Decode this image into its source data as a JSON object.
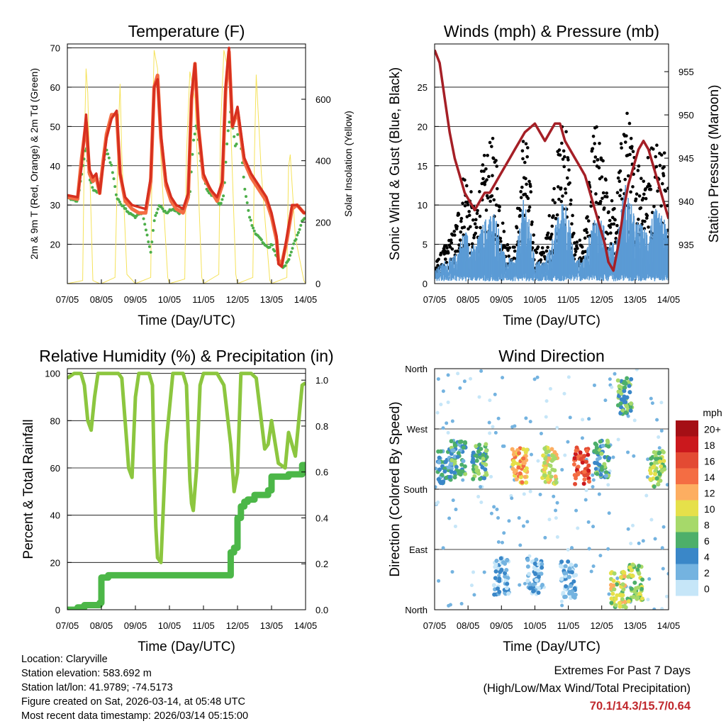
{
  "colors": {
    "t2m": "#d7301f",
    "t9m": "#f46d43",
    "td": "#4daf4a",
    "solar": "#f5e25a",
    "gust": "#000000",
    "wind": "#5b9bd5",
    "pressure": "#a51f26",
    "rh": "#8cc63f",
    "precip": "#4cb748",
    "extremes": "#c0282d"
  },
  "x_ticks": [
    "07/05",
    "08/05",
    "09/05",
    "10/05",
    "11/05",
    "12/05",
    "13/05",
    "14/05"
  ],
  "x_label": "Time (Day/UTC)",
  "info": {
    "location": "Location: Claryville",
    "elevation": "Station elevation: 583.692 m",
    "latlon": "Station lat/lon: 41.9789; -74.5173",
    "created": "Figure created on Sat, 2026-03-14, at 05:48 UTC",
    "recent": "Most recent data timestamp: 2026/03/14 05:15:00"
  },
  "extremes": {
    "title": "Extremes For Past 7 Days",
    "subtitle": "(High/Low/Max Wind/Total Precipitation)",
    "values": "70.1/14.3/15.7/0.64"
  },
  "chart_data": [
    {
      "id": "temperature",
      "type": "line",
      "title": "Temperature (F)",
      "xlabel": "Time (Day/UTC)",
      "ylabel": "2m & 9m T (Red, Orange) & 2m Td (Green)",
      "y2label": "Solar Insolation (Yellow)",
      "xlim": [
        0,
        7
      ],
      "ylim": [
        10,
        71
      ],
      "y2lim": [
        0,
        780
      ],
      "y_ticks": [
        20,
        30,
        40,
        50,
        60,
        70
      ],
      "y2_ticks": [
        0,
        200,
        400,
        600
      ],
      "y_ticks_labels": [
        "20",
        "30",
        "40",
        "50",
        "60",
        "70"
      ],
      "y2_ticks_labels": [
        "0",
        "200",
        "400",
        "600"
      ],
      "grid": true,
      "series": [
        {
          "name": "2m T",
          "color": "#d7301f",
          "x": [
            0,
            0.3,
            0.42,
            0.55,
            0.65,
            0.75,
            0.85,
            0.95,
            1.05,
            1.15,
            1.3,
            1.45,
            1.55,
            1.7,
            1.9,
            2.1,
            2.3,
            2.45,
            2.55,
            2.65,
            2.75,
            2.9,
            3.05,
            3.2,
            3.4,
            3.55,
            3.65,
            3.75,
            3.85,
            4.0,
            4.2,
            4.4,
            4.55,
            4.65,
            4.75,
            4.85,
            5.0,
            5.2,
            5.4,
            5.55,
            5.7,
            5.85,
            6.0,
            6.15,
            6.2,
            6.3,
            6.45,
            6.6,
            6.75,
            6.85,
            6.95,
            7.0
          ],
          "y": [
            32.5,
            32,
            40,
            53,
            39,
            37,
            38,
            33,
            40,
            47,
            52,
            54,
            38,
            32,
            30,
            29.5,
            29,
            37,
            60,
            62,
            48,
            36,
            32,
            30,
            29,
            33,
            58,
            66,
            50,
            38,
            34,
            32,
            36,
            60,
            70,
            50,
            55,
            42,
            38,
            36,
            34,
            32,
            28,
            22,
            15,
            14.3,
            22,
            30,
            30,
            29,
            28,
            28
          ]
        },
        {
          "name": "9m T",
          "color": "#f46d43",
          "x": [
            0,
            0.3,
            0.42,
            0.55,
            0.65,
            0.75,
            0.85,
            0.95,
            1.05,
            1.15,
            1.3,
            1.45,
            1.55,
            1.7,
            1.9,
            2.1,
            2.3,
            2.45,
            2.55,
            2.65,
            2.75,
            2.9,
            3.05,
            3.2,
            3.4,
            3.55,
            3.65,
            3.75,
            3.85,
            4.0,
            4.2,
            4.4,
            4.55,
            4.65,
            4.75,
            4.85,
            5.0,
            5.2,
            5.4,
            5.55,
            5.7,
            5.85,
            6.0,
            6.15,
            6.2,
            6.3,
            6.45,
            6.6,
            6.75,
            6.85,
            6.95,
            7.0
          ],
          "y": [
            32,
            31.5,
            42,
            51,
            38,
            36,
            37,
            33,
            41,
            48,
            53,
            53,
            38,
            31,
            29,
            28,
            28,
            36,
            60,
            63,
            47,
            35,
            31,
            29,
            28,
            32,
            57,
            66,
            50,
            37,
            34,
            31,
            35,
            59,
            69,
            50,
            54,
            41,
            37,
            35,
            33,
            31,
            27,
            21,
            16,
            15,
            21,
            29,
            30,
            29,
            28,
            28
          ]
        },
        {
          "name": "2m Td",
          "color": "#4daf4a",
          "x": [
            0,
            0.3,
            0.42,
            0.55,
            0.65,
            0.75,
            0.9,
            1.05,
            1.15,
            1.3,
            1.45,
            1.6,
            1.8,
            2.0,
            2.2,
            2.35,
            2.45,
            2.55,
            2.7,
            2.9,
            3.1,
            3.3,
            3.45,
            3.6,
            3.7,
            3.8,
            3.9,
            4.1,
            4.3,
            4.5,
            4.6,
            4.7,
            4.8,
            4.95,
            5.05,
            5.2,
            5.35,
            5.5,
            5.7,
            5.9,
            6.0,
            6.1,
            6.2,
            6.35,
            6.5,
            6.65,
            6.8,
            6.9,
            7.0
          ],
          "y": [
            32,
            31,
            38,
            45,
            37,
            34,
            33,
            40,
            44,
            40,
            32,
            30,
            28,
            27,
            28,
            22,
            18,
            26,
            30,
            28,
            29,
            28,
            30,
            33,
            46,
            51,
            42,
            34,
            32,
            30,
            33,
            47,
            54,
            44,
            51,
            35,
            27,
            23,
            21,
            19,
            20,
            18,
            16,
            14,
            16,
            20,
            23,
            26,
            27
          ]
        },
        {
          "name": "Solar Insolation",
          "color": "#f5e25a",
          "axis": "y2",
          "x": [
            0,
            0.45,
            0.5,
            0.55,
            0.6,
            0.65,
            0.75,
            0.95,
            1.0,
            1.4,
            1.5,
            1.55,
            1.6,
            1.75,
            2.0,
            2.45,
            2.5,
            2.55,
            2.65,
            2.75,
            2.95,
            3.0,
            3.45,
            3.5,
            3.6,
            3.75,
            3.95,
            4.0,
            4.45,
            4.5,
            4.6,
            4.75,
            4.95,
            5.0,
            5.45,
            5.5,
            5.55,
            5.7,
            5.95,
            6.0,
            6.45,
            6.5,
            6.55,
            6.7,
            6.95,
            7.0
          ],
          "y": [
            0,
            10,
            450,
            700,
            620,
            400,
            10,
            0,
            0,
            20,
            500,
            650,
            420,
            30,
            0,
            20,
            520,
            760,
            700,
            400,
            20,
            0,
            15,
            420,
            690,
            600,
            20,
            0,
            30,
            500,
            760,
            680,
            30,
            0,
            20,
            430,
            680,
            360,
            10,
            0,
            20,
            380,
            420,
            150,
            10,
            0
          ]
        }
      ]
    },
    {
      "id": "winds",
      "type": "scatter",
      "title": "Winds (mph) & Pressure (mb)",
      "xlabel": "Time (Day/UTC)",
      "ylabel": "Sonic Wind & Gust (Blue, Black)",
      "y2label": "Station Pressure (Maroon)",
      "xlim": [
        0,
        7
      ],
      "ylim": [
        0,
        30.5
      ],
      "y2lim": [
        930.5,
        958.2
      ],
      "y_ticks": [
        0,
        5,
        10,
        15,
        20,
        25
      ],
      "y2_ticks": [
        935,
        940,
        945,
        950,
        955
      ],
      "y_ticks_labels": [
        "0",
        "5",
        "10",
        "15",
        "20",
        "25"
      ],
      "y2_ticks_labels": [
        "935",
        "940",
        "945",
        "950",
        "955"
      ],
      "grid": true,
      "series": [
        {
          "name": "Gust envelope",
          "color": "#000000",
          "style": "dots",
          "x": [
            0,
            0.3,
            0.6,
            0.9,
            1.2,
            1.5,
            1.8,
            2.1,
            2.4,
            2.7,
            3.0,
            3.3,
            3.6,
            3.9,
            4.2,
            4.5,
            4.8,
            5.1,
            5.4,
            5.7,
            6.0,
            6.3,
            6.6,
            6.9,
            7.0
          ],
          "y": [
            2,
            4,
            6,
            13,
            8,
            14,
            16,
            5,
            4,
            19,
            4,
            4,
            12,
            20,
            4,
            6,
            18,
            12,
            8,
            20,
            14,
            14,
            16,
            15,
            12
          ]
        },
        {
          "name": "Sonic wind",
          "color": "#5b9bd5",
          "style": "band",
          "x": [
            0,
            0.3,
            0.6,
            0.9,
            1.2,
            1.5,
            1.8,
            2.1,
            2.4,
            2.7,
            3.0,
            3.3,
            3.6,
            3.9,
            4.2,
            4.5,
            4.8,
            5.1,
            5.4,
            5.7,
            6.0,
            6.3,
            6.6,
            6.9,
            7.0
          ],
          "y": [
            1.5,
            2.5,
            3,
            6,
            4,
            7,
            8,
            3,
            2.5,
            10,
            2.5,
            2.5,
            6,
            10,
            2.5,
            3,
            8,
            6,
            4,
            11,
            7,
            6,
            8,
            7,
            5
          ]
        },
        {
          "name": "Station pressure",
          "color": "#a51f26",
          "style": "line",
          "axis": "y2",
          "x": [
            0,
            0.15,
            0.3,
            0.45,
            0.6,
            0.75,
            0.9,
            1.05,
            1.2,
            1.35,
            1.5,
            1.65,
            1.8,
            1.95,
            2.1,
            2.25,
            2.4,
            2.55,
            2.7,
            2.85,
            3.0,
            3.15,
            3.3,
            3.45,
            3.6,
            3.75,
            3.9,
            4.05,
            4.2,
            4.35,
            4.5,
            4.65,
            4.8,
            4.95,
            5.1,
            5.2,
            5.35,
            5.5,
            5.65,
            5.8,
            5.95,
            6.1,
            6.25,
            6.4,
            6.55,
            6.7,
            6.85,
            7.0
          ],
          "y": [
            957.5,
            956,
            952,
            948,
            945,
            943,
            941,
            940,
            939,
            940,
            941,
            941,
            942,
            943,
            944,
            945,
            946,
            947,
            948,
            948.5,
            949,
            948,
            947,
            948,
            949,
            949,
            947,
            946,
            945,
            944,
            943,
            941,
            939,
            937,
            935,
            933,
            932,
            935,
            939,
            942,
            944,
            946,
            947,
            946,
            944,
            942,
            940,
            938
          ]
        }
      ]
    },
    {
      "id": "humidity",
      "type": "line",
      "title": "Relative Humidity (%) & Precipitation (in)",
      "xlabel": "Time (Day/UTC)",
      "ylabel": "Percent & Total Rainfall",
      "xlim": [
        0,
        7
      ],
      "ylim": [
        0,
        102
      ],
      "y2lim": [
        0,
        1.05
      ],
      "y_ticks": [
        0,
        20,
        40,
        60,
        80,
        100
      ],
      "y2_ticks": [
        0.0,
        0.2,
        0.4,
        0.6,
        0.8,
        1.0
      ],
      "y_ticks_labels": [
        "0",
        "20",
        "40",
        "60",
        "80",
        "100"
      ],
      "y2_ticks_labels": [
        "0.0",
        "0.2",
        "0.4",
        "0.6",
        "0.8",
        "1.0"
      ],
      "grid": true,
      "series": [
        {
          "name": "Relative humidity",
          "color": "#8cc63f",
          "x": [
            0,
            0.2,
            0.4,
            0.5,
            0.6,
            0.7,
            0.8,
            0.9,
            1.2,
            1.5,
            1.6,
            1.75,
            1.8,
            1.9,
            2.0,
            2.1,
            2.4,
            2.5,
            2.55,
            2.6,
            2.65,
            2.75,
            2.9,
            3.1,
            3.4,
            3.5,
            3.6,
            3.65,
            3.7,
            3.8,
            3.9,
            4.0,
            4.2,
            4.4,
            4.6,
            4.8,
            4.9,
            5.0,
            5.1,
            5.2,
            5.4,
            5.55,
            5.7,
            5.8,
            5.9,
            6.0,
            6.2,
            6.4,
            6.5,
            6.6,
            6.7,
            6.8,
            6.9,
            7.0
          ],
          "y": [
            98,
            100,
            100,
            95,
            80,
            76,
            90,
            100,
            100,
            100,
            98,
            70,
            60,
            56,
            90,
            100,
            100,
            95,
            60,
            35,
            22,
            20,
            70,
            100,
            100,
            95,
            55,
            45,
            42,
            60,
            95,
            100,
            100,
            100,
            95,
            70,
            50,
            58,
            100,
            100,
            100,
            98,
            80,
            68,
            70,
            80,
            62,
            60,
            75,
            70,
            65,
            80,
            95,
            96
          ]
        },
        {
          "name": "Total precipitation",
          "color": "#4cb748",
          "axis": "y2",
          "x": [
            0,
            0.3,
            0.5,
            0.8,
            0.95,
            1.0,
            1.2,
            4.5,
            4.75,
            4.8,
            4.9,
            5.0,
            5.1,
            5.2,
            5.3,
            5.5,
            5.9,
            6.0,
            6.4,
            6.5,
            6.8,
            6.9,
            7.0
          ],
          "y": [
            0.0,
            0.01,
            0.02,
            0.02,
            0.03,
            0.14,
            0.15,
            0.15,
            0.15,
            0.25,
            0.27,
            0.4,
            0.45,
            0.47,
            0.48,
            0.5,
            0.52,
            0.58,
            0.58,
            0.59,
            0.59,
            0.63,
            0.64
          ]
        }
      ]
    },
    {
      "id": "direction",
      "type": "scatter",
      "title": "Wind Direction",
      "xlabel": "Time (Day/UTC)",
      "ylabel": "Direction (Colored By Speed)",
      "xlim": [
        0,
        7
      ],
      "ylim": [
        0,
        360
      ],
      "y_ticks": [
        0,
        90,
        180,
        270,
        360
      ],
      "y_tick_labels": [
        "North",
        "East",
        "South",
        "West",
        "North"
      ],
      "grid": true,
      "colorbar": {
        "title": "mph",
        "labels": [
          "20+",
          "18",
          "16",
          "14",
          "12",
          "10",
          "8",
          "6",
          "4",
          "2",
          "0"
        ],
        "colors": [
          "#a50f15",
          "#cb181d",
          "#e34a33",
          "#f46d43",
          "#fdae61",
          "#e6e04a",
          "#a6d96a",
          "#4daf6a",
          "#3a87c8",
          "#74b3e0",
          "#c6e6f8"
        ]
      },
      "clusters": [
        {
          "x": 0.3,
          "dir": 215,
          "speed": 4
        },
        {
          "x": 0.7,
          "dir": 225,
          "speed": 5
        },
        {
          "x": 1.35,
          "dir": 220,
          "speed": 6
        },
        {
          "x": 2.55,
          "dir": 215,
          "speed": 12
        },
        {
          "x": 3.45,
          "dir": 215,
          "speed": 10
        },
        {
          "x": 4.4,
          "dir": 215,
          "speed": 16
        },
        {
          "x": 5.0,
          "dir": 225,
          "speed": 5
        },
        {
          "x": 5.7,
          "dir": 320,
          "speed": 6
        },
        {
          "x": 6.65,
          "dir": 210,
          "speed": 8
        },
        {
          "x": 2.0,
          "dir": 50,
          "speed": 2
        },
        {
          "x": 3.0,
          "dir": 50,
          "speed": 2
        },
        {
          "x": 4.0,
          "dir": 45,
          "speed": 2
        },
        {
          "x": 5.5,
          "dir": 30,
          "speed": 9
        },
        {
          "x": 6.0,
          "dir": 40,
          "speed": 8
        }
      ]
    }
  ]
}
